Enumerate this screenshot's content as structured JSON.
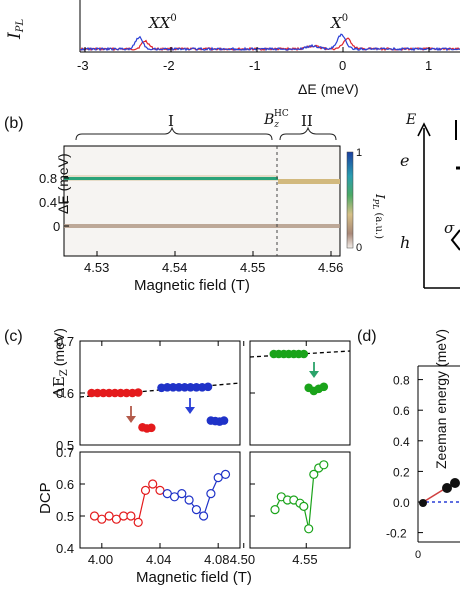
{
  "panel_a": {
    "ylabel": "I",
    "ylabel_sub": "PL",
    "xlabel": "ΔE (meV)",
    "peak_labels": [
      {
        "text": "XX",
        "sup": "0",
        "x": -2.35
      },
      {
        "text": "X",
        "sup": "0",
        "x": 0
      }
    ],
    "ticks": [
      "-3",
      "-2",
      "-1",
      "0",
      "1"
    ],
    "series_colors": [
      "#e0242b",
      "#2a3fd6"
    ]
  },
  "panel_b": {
    "tag": "(b)",
    "region1": "I",
    "region2": "II",
    "bhc_label": "B",
    "bhc_sub": "z",
    "bhc_sup": "HC",
    "ylabel": "ΔE (meV)",
    "xlabel": "Magnetic field (T)",
    "yticks": [
      "0.8",
      "0.4",
      "0"
    ],
    "xticks": [
      "4.53",
      "4.54",
      "4.55",
      "4.56"
    ],
    "colorbar_label": "I",
    "colorbar_sub": "PL",
    "colorbar_unit": "(a.u.)",
    "colorbar_ticks": [
      "1",
      "0"
    ],
    "colors": {
      "line_high": "#2aa37a",
      "line_low": "#a6856a",
      "cb_top": "#1a3fa0",
      "cb_mid": "#d6c088",
      "cb_bot": "#f3eee9"
    }
  },
  "diagram": {
    "e_axis": "E",
    "e_level": "e",
    "h_level": "h",
    "sigma": "σ"
  },
  "panel_c": {
    "tag": "(c)",
    "top_ylabel": "ΔE",
    "top_ylabel_sub": "Z",
    "top_ylabel_unit": "(meV)",
    "bottom_ylabel": "DCP",
    "xlabel": "Magnetic field (T)",
    "top_yticks": [
      "0.7",
      "0.6",
      "0.5"
    ],
    "bottom_yticks": [
      "0.7",
      "0.6",
      "0.5",
      "0.4"
    ],
    "xticks_left": [
      "4.00",
      "4.04",
      "4.08"
    ],
    "xticks_right": [
      "4.50",
      "4.55"
    ],
    "colors": {
      "red": "#e41a1c",
      "blue": "#1f32c8",
      "green": "#1aa31a",
      "arrow_red": "#b35a4a",
      "arrow_blue": "#2a3fd6",
      "arrow_green": "#2aa36a"
    }
  },
  "panel_d": {
    "tag": "(d)",
    "ylabel": "Zeeman energy (meV)",
    "yticks": [
      "0.8",
      "0.6",
      "0.4",
      "0.2",
      "0.0",
      "-0.2"
    ],
    "xtick": "0"
  },
  "chart_data": [
    {
      "type": "scatter",
      "panel": "c-top",
      "ylabel": "ΔE_Z (meV)",
      "ylim": [
        0.5,
        0.7
      ],
      "series": [
        {
          "name": "red",
          "x": [
            3.993,
            3.997,
            4.001,
            4.005,
            4.009,
            4.013,
            4.017,
            4.021,
            4.025
          ],
          "y": [
            0.6,
            0.6,
            0.6,
            0.6,
            0.6,
            0.6,
            0.6,
            0.6,
            0.601
          ]
        },
        {
          "name": "red-low",
          "x": [
            4.028,
            4.031,
            4.034
          ],
          "y": [
            0.534,
            0.532,
            0.533
          ]
        },
        {
          "name": "blue",
          "x": [
            4.041,
            4.045,
            4.049,
            4.053,
            4.057,
            4.061,
            4.065,
            4.069,
            4.073
          ],
          "y": [
            0.61,
            0.611,
            0.611,
            0.611,
            0.611,
            0.611,
            0.611,
            0.611,
            0.612
          ]
        },
        {
          "name": "blue-low",
          "x": [
            4.075,
            4.078,
            4.081,
            4.084
          ],
          "y": [
            0.547,
            0.546,
            0.545,
            0.547
          ]
        },
        {
          "name": "green",
          "x": [
            4.524,
            4.528,
            4.532,
            4.536,
            4.54,
            4.544,
            4.548
          ],
          "y": [
            0.675,
            0.675,
            0.675,
            0.675,
            0.675,
            0.675,
            0.675
          ]
        },
        {
          "name": "green-low",
          "x": [
            4.552,
            4.556,
            4.56,
            4.564
          ],
          "y": [
            0.61,
            0.604,
            0.608,
            0.612
          ]
        }
      ]
    },
    {
      "type": "line",
      "panel": "c-bottom",
      "ylabel": "DCP",
      "ylim": [
        0.4,
        0.7
      ],
      "series": [
        {
          "name": "red",
          "x": [
            3.995,
            4.0,
            4.005,
            4.01,
            4.015,
            4.02,
            4.025,
            4.03,
            4.035,
            4.04
          ],
          "y": [
            0.5,
            0.49,
            0.5,
            0.49,
            0.5,
            0.5,
            0.48,
            0.58,
            0.6,
            0.58
          ]
        },
        {
          "name": "blue",
          "x": [
            4.045,
            4.05,
            4.055,
            4.06,
            4.065,
            4.07,
            4.075,
            4.08,
            4.085
          ],
          "y": [
            0.57,
            0.56,
            0.57,
            0.55,
            0.52,
            0.5,
            0.57,
            0.62,
            0.63
          ]
        },
        {
          "name": "green",
          "x": [
            4.525,
            4.53,
            4.535,
            4.54,
            4.545,
            4.548,
            4.552,
            4.556,
            4.56,
            4.564
          ],
          "y": [
            0.52,
            0.56,
            0.55,
            0.55,
            0.54,
            0.53,
            0.46,
            0.63,
            0.65,
            0.66
          ]
        }
      ]
    }
  ]
}
